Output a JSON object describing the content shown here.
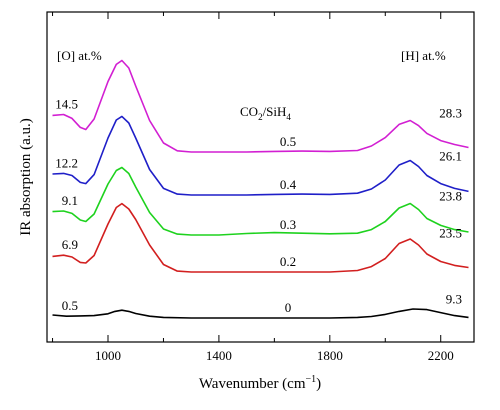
{
  "chart_data": {
    "type": "line",
    "xlabel_main": "Wavenumber (cm",
    "xlabel_sup": "−1",
    "xlabel_close": ")",
    "ylabel": "IR absorption (a.u.)",
    "xlim": [
      780,
      2320
    ],
    "x_ticks": [
      1000,
      1400,
      1800,
      2200
    ],
    "grid": false,
    "legend": "none",
    "annotations": {
      "o_header": "[O] at.%",
      "h_header": "[H] at.%",
      "ratio_label_prefix": "CO",
      "ratio_label_sub": "2",
      "ratio_label_mid": "/SiH",
      "ratio_label_sub2": "4"
    },
    "series": [
      {
        "ratio": "0",
        "o_at": "0.5",
        "h_at": "9.3",
        "color": "#000000",
        "points": [
          [
            800,
            0.1
          ],
          [
            850,
            0.06
          ],
          [
            900,
            0.07
          ],
          [
            950,
            0.08
          ],
          [
            1000,
            0.14
          ],
          [
            1025,
            0.22
          ],
          [
            1050,
            0.26
          ],
          [
            1075,
            0.22
          ],
          [
            1100,
            0.15
          ],
          [
            1150,
            0.06
          ],
          [
            1200,
            0.02
          ],
          [
            1300,
            0.0
          ],
          [
            1400,
            0.0
          ],
          [
            1500,
            0.0
          ],
          [
            1600,
            0.0
          ],
          [
            1700,
            0.0
          ],
          [
            1800,
            0.0
          ],
          [
            1900,
            0.02
          ],
          [
            1950,
            0.05
          ],
          [
            2000,
            0.12
          ],
          [
            2050,
            0.22
          ],
          [
            2100,
            0.3
          ],
          [
            2150,
            0.28
          ],
          [
            2200,
            0.18
          ],
          [
            2250,
            0.08
          ],
          [
            2300,
            0.02
          ]
        ]
      },
      {
        "ratio": "0.2",
        "o_at": "6.9",
        "h_at": "23.5",
        "color": "#d21f1f",
        "points": [
          [
            800,
            0.52
          ],
          [
            840,
            0.56
          ],
          [
            870,
            0.5
          ],
          [
            900,
            0.32
          ],
          [
            920,
            0.3
          ],
          [
            950,
            0.55
          ],
          [
            1000,
            1.6
          ],
          [
            1030,
            2.15
          ],
          [
            1050,
            2.28
          ],
          [
            1075,
            2.1
          ],
          [
            1100,
            1.75
          ],
          [
            1150,
            0.9
          ],
          [
            1200,
            0.25
          ],
          [
            1250,
            0.03
          ],
          [
            1300,
            0.0
          ],
          [
            1400,
            0.0
          ],
          [
            1500,
            0.0
          ],
          [
            1600,
            0.0
          ],
          [
            1700,
            0.0
          ],
          [
            1800,
            0.0
          ],
          [
            1900,
            0.05
          ],
          [
            1950,
            0.18
          ],
          [
            2000,
            0.45
          ],
          [
            2050,
            0.95
          ],
          [
            2090,
            1.1
          ],
          [
            2120,
            0.9
          ],
          [
            2150,
            0.6
          ],
          [
            2200,
            0.35
          ],
          [
            2250,
            0.22
          ],
          [
            2300,
            0.15
          ]
        ]
      },
      {
        "ratio": "0.3",
        "o_at": "9.1",
        "h_at": "23.8",
        "color": "#1ed21e",
        "points": [
          [
            800,
            0.78
          ],
          [
            840,
            0.8
          ],
          [
            870,
            0.72
          ],
          [
            900,
            0.5
          ],
          [
            920,
            0.45
          ],
          [
            950,
            0.7
          ],
          [
            1000,
            1.7
          ],
          [
            1030,
            2.15
          ],
          [
            1050,
            2.25
          ],
          [
            1075,
            2.05
          ],
          [
            1100,
            1.6
          ],
          [
            1150,
            0.75
          ],
          [
            1200,
            0.2
          ],
          [
            1250,
            0.03
          ],
          [
            1300,
            0.0
          ],
          [
            1400,
            0.0
          ],
          [
            1500,
            0.05
          ],
          [
            1600,
            0.08
          ],
          [
            1700,
            0.06
          ],
          [
            1800,
            0.04
          ],
          [
            1900,
            0.06
          ],
          [
            1950,
            0.18
          ],
          [
            2000,
            0.45
          ],
          [
            2050,
            0.9
          ],
          [
            2090,
            1.05
          ],
          [
            2120,
            0.85
          ],
          [
            2150,
            0.55
          ],
          [
            2200,
            0.32
          ],
          [
            2250,
            0.18
          ],
          [
            2300,
            0.1
          ]
        ]
      },
      {
        "ratio": "0.4",
        "o_at": "12.2",
        "h_at": "26.1",
        "color": "#1f1fc8",
        "points": [
          [
            800,
            0.7
          ],
          [
            840,
            0.72
          ],
          [
            870,
            0.65
          ],
          [
            900,
            0.42
          ],
          [
            920,
            0.38
          ],
          [
            950,
            0.68
          ],
          [
            1000,
            1.9
          ],
          [
            1030,
            2.5
          ],
          [
            1050,
            2.62
          ],
          [
            1075,
            2.4
          ],
          [
            1100,
            1.9
          ],
          [
            1150,
            0.85
          ],
          [
            1200,
            0.22
          ],
          [
            1250,
            0.03
          ],
          [
            1300,
            0.0
          ],
          [
            1400,
            0.0
          ],
          [
            1500,
            0.0
          ],
          [
            1600,
            0.02
          ],
          [
            1700,
            0.03
          ],
          [
            1800,
            0.02
          ],
          [
            1900,
            0.06
          ],
          [
            1950,
            0.2
          ],
          [
            2000,
            0.5
          ],
          [
            2050,
            1.0
          ],
          [
            2090,
            1.15
          ],
          [
            2120,
            0.95
          ],
          [
            2150,
            0.65
          ],
          [
            2200,
            0.38
          ],
          [
            2250,
            0.22
          ],
          [
            2300,
            0.12
          ]
        ]
      },
      {
        "ratio": "0.5",
        "o_at": "14.5",
        "h_at": "28.3",
        "color": "#d21fd2",
        "points": [
          [
            800,
            1.22
          ],
          [
            840,
            1.25
          ],
          [
            870,
            1.12
          ],
          [
            900,
            0.82
          ],
          [
            920,
            0.75
          ],
          [
            950,
            1.1
          ],
          [
            1000,
            2.35
          ],
          [
            1030,
            2.92
          ],
          [
            1050,
            3.05
          ],
          [
            1075,
            2.8
          ],
          [
            1100,
            2.2
          ],
          [
            1150,
            1.05
          ],
          [
            1200,
            0.3
          ],
          [
            1250,
            0.04
          ],
          [
            1300,
            0.0
          ],
          [
            1400,
            0.0
          ],
          [
            1500,
            0.0
          ],
          [
            1600,
            0.02
          ],
          [
            1700,
            0.03
          ],
          [
            1800,
            0.02
          ],
          [
            1900,
            0.05
          ],
          [
            1950,
            0.2
          ],
          [
            2000,
            0.48
          ],
          [
            2050,
            0.92
          ],
          [
            2090,
            1.05
          ],
          [
            2120,
            0.88
          ],
          [
            2150,
            0.62
          ],
          [
            2200,
            0.38
          ],
          [
            2250,
            0.25
          ],
          [
            2300,
            0.15
          ]
        ]
      }
    ]
  }
}
